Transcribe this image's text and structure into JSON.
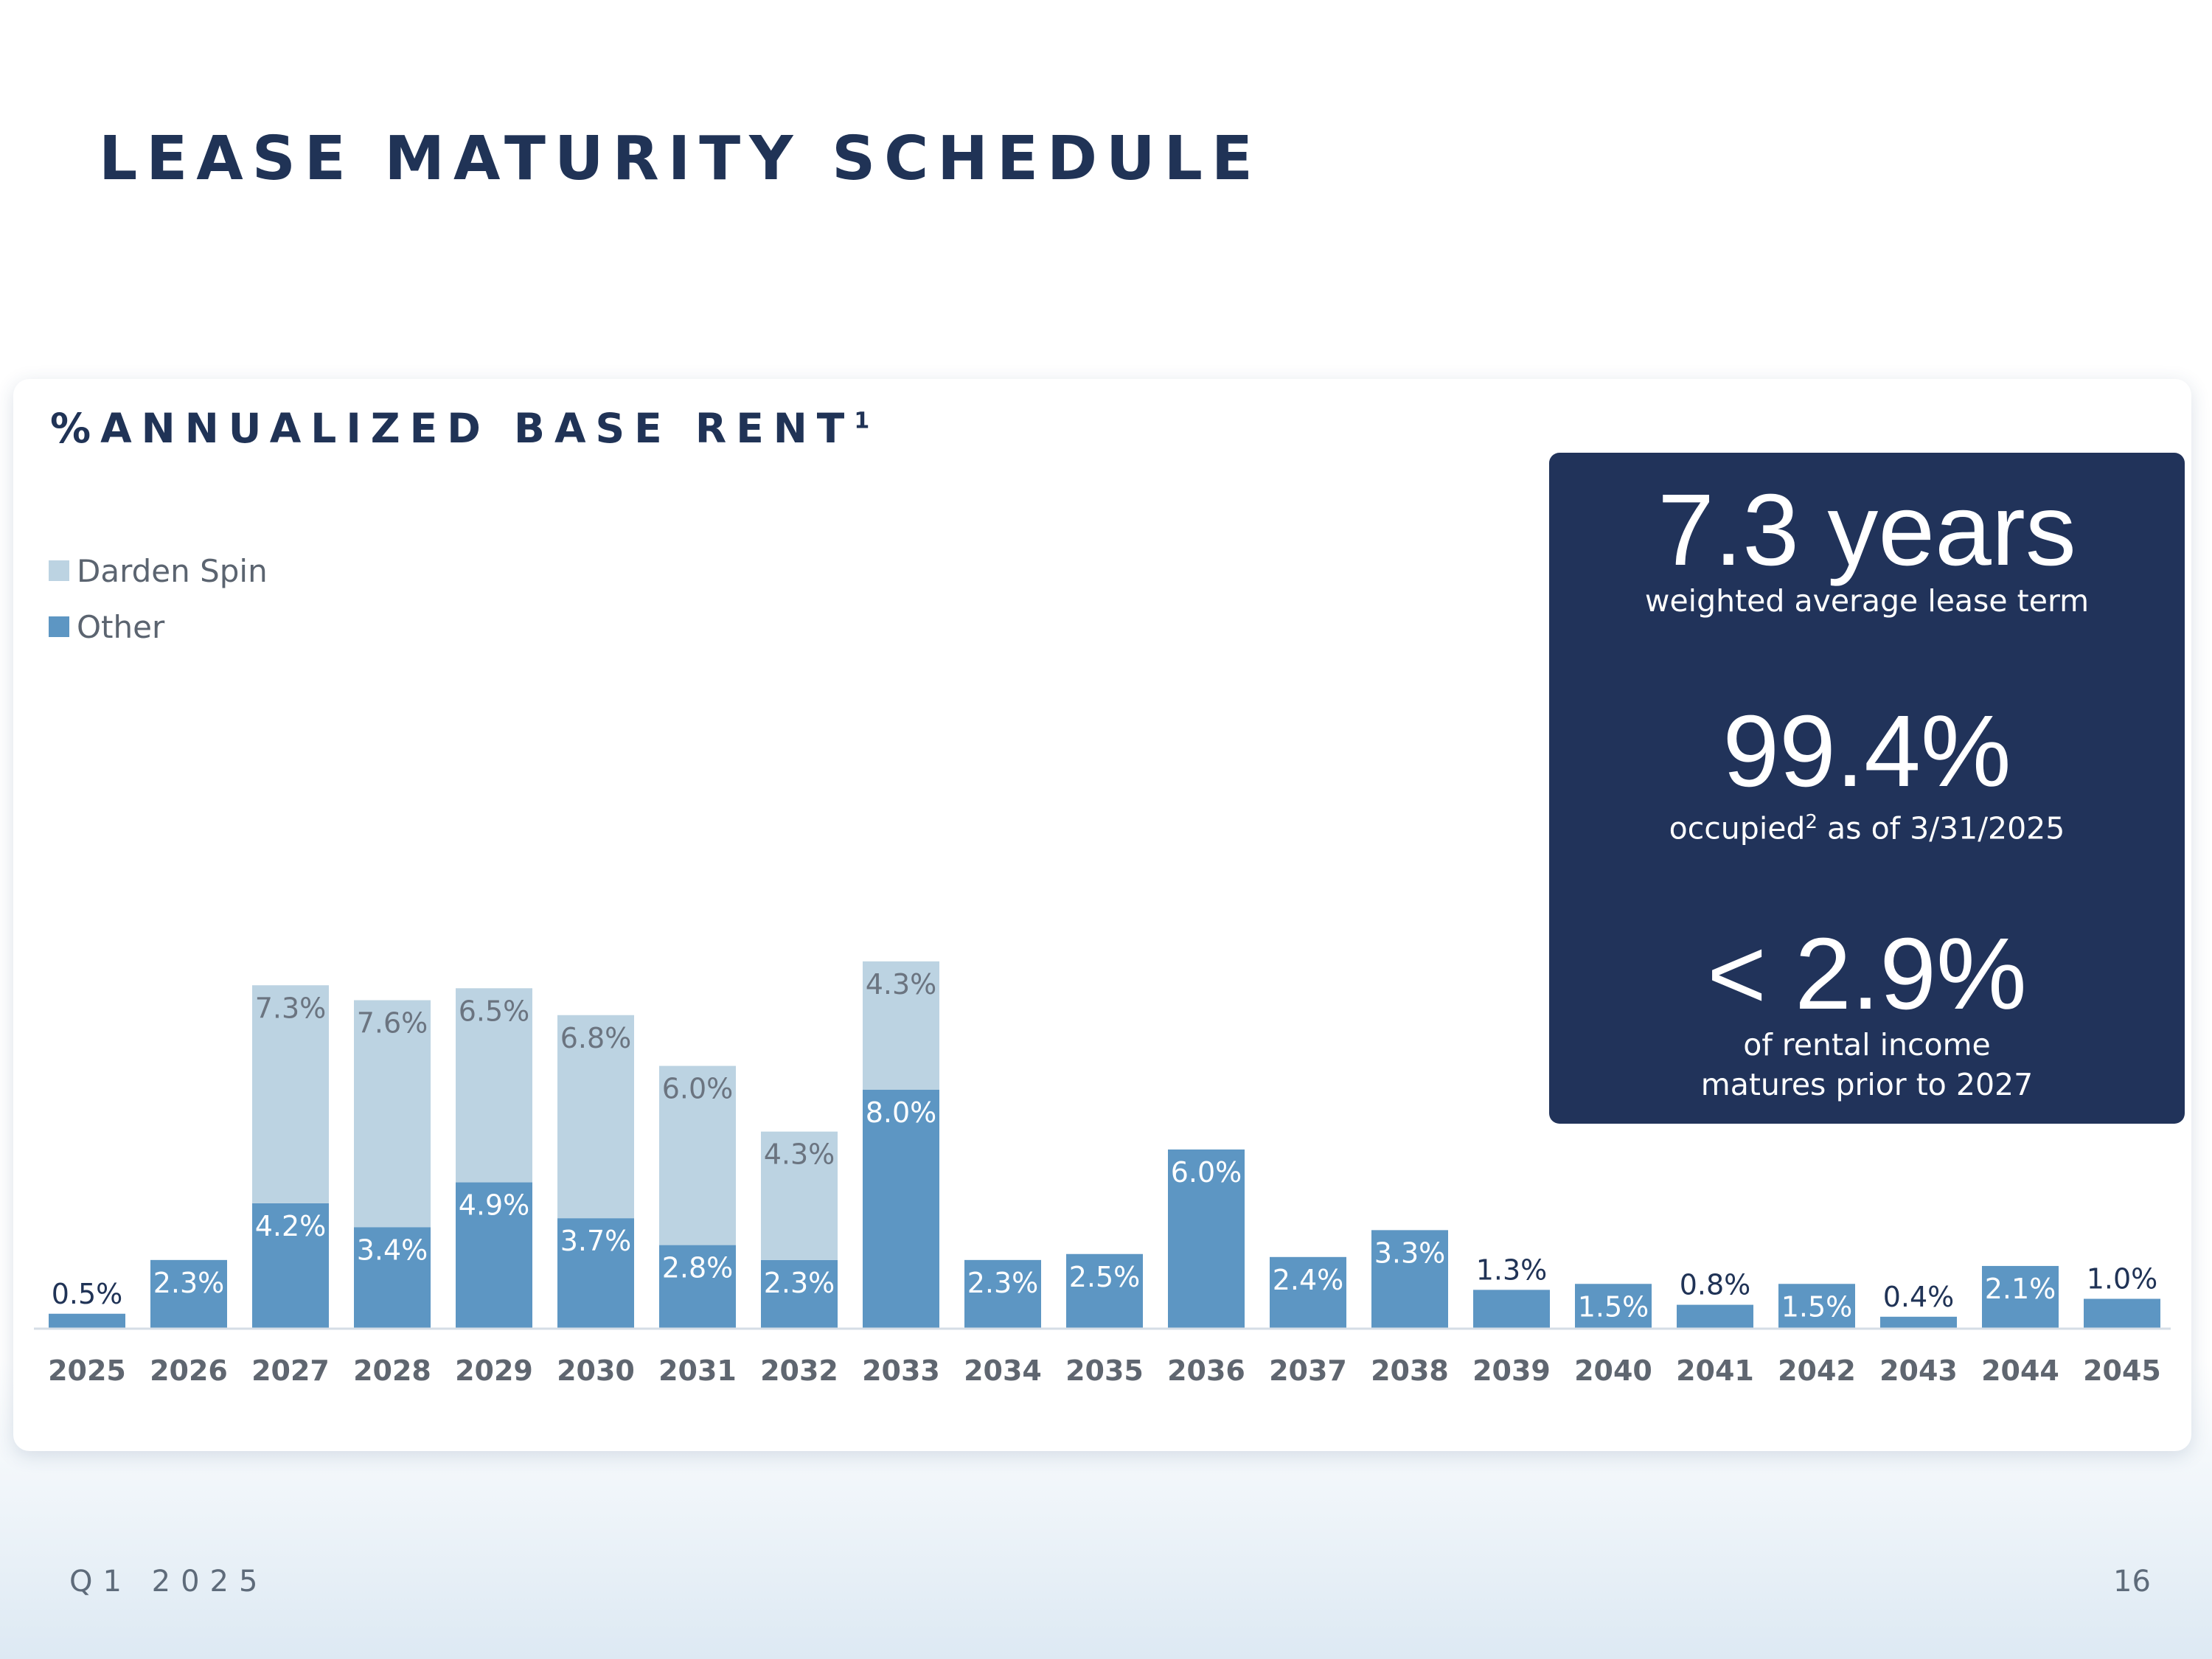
{
  "title": "LEASE MATURITY SCHEDULE",
  "card": {
    "title": "%ANNUALIZED BASE RENT",
    "title_footnote": "1"
  },
  "legend": [
    {
      "label": "Darden Spin",
      "color": "#bcd3e2"
    },
    {
      "label": "Other",
      "color": "#5d96c3"
    }
  ],
  "stats": {
    "wale_value": "7.3 years",
    "wale_label": "weighted average lease term",
    "occupancy_value": "99.4%",
    "occupancy_label_pre": "occupied",
    "occupancy_footnote": "2",
    "occupancy_label_post": " as of 3/31/2025",
    "maturity_value": "< 2.9%",
    "maturity_label_line1": "of rental income",
    "maturity_label_line2": "matures prior to 2027"
  },
  "footer": {
    "period": "Q1 2025",
    "page_number": "16"
  },
  "colors": {
    "navy": "#21335a",
    "title": "#203356",
    "darden": "#bcd3e2",
    "other": "#5d96c3"
  },
  "chart_data": {
    "type": "bar",
    "stacked": true,
    "title": "%ANNUALIZED BASE RENT",
    "xlabel": "",
    "ylabel": "",
    "grid": false,
    "legend_position": "top-left",
    "categories": [
      "2025",
      "2026",
      "2027",
      "2028",
      "2029",
      "2030",
      "2031",
      "2032",
      "2033",
      "2034",
      "2035",
      "2036",
      "2037",
      "2038",
      "2039",
      "2040",
      "2041",
      "2042",
      "2043",
      "2044",
      "2045"
    ],
    "series": [
      {
        "name": "Other",
        "values": [
          0.5,
          2.3,
          4.2,
          3.4,
          4.9,
          3.7,
          2.8,
          2.3,
          8.0,
          2.3,
          2.5,
          6.0,
          2.4,
          3.3,
          1.3,
          1.5,
          0.8,
          1.5,
          0.4,
          2.1,
          1.0
        ],
        "labels": [
          "0.5%",
          "2.3%",
          "4.2%",
          "3.4%",
          "4.9%",
          "3.7%",
          "2.8%",
          "2.3%",
          "8.0%",
          "2.3%",
          "2.5%",
          "6.0%",
          "2.4%",
          "3.3%",
          "1.3%",
          "1.5%",
          "0.8%",
          "1.5%",
          "0.4%",
          "2.1%",
          "1.0%"
        ]
      },
      {
        "name": "Darden Spin",
        "values": [
          0,
          0,
          7.3,
          7.6,
          6.5,
          6.8,
          6.0,
          4.3,
          4.3,
          0,
          0,
          0,
          0,
          0,
          0,
          0,
          0,
          0,
          0,
          0,
          0
        ],
        "labels": [
          "",
          "",
          "7.3%",
          "7.6%",
          "6.5%",
          "6.8%",
          "6.0%",
          "4.3%",
          "4.3%",
          "",
          "",
          "",
          "",
          "",
          "",
          "",
          "",
          "",
          "",
          "",
          ""
        ]
      }
    ]
  }
}
